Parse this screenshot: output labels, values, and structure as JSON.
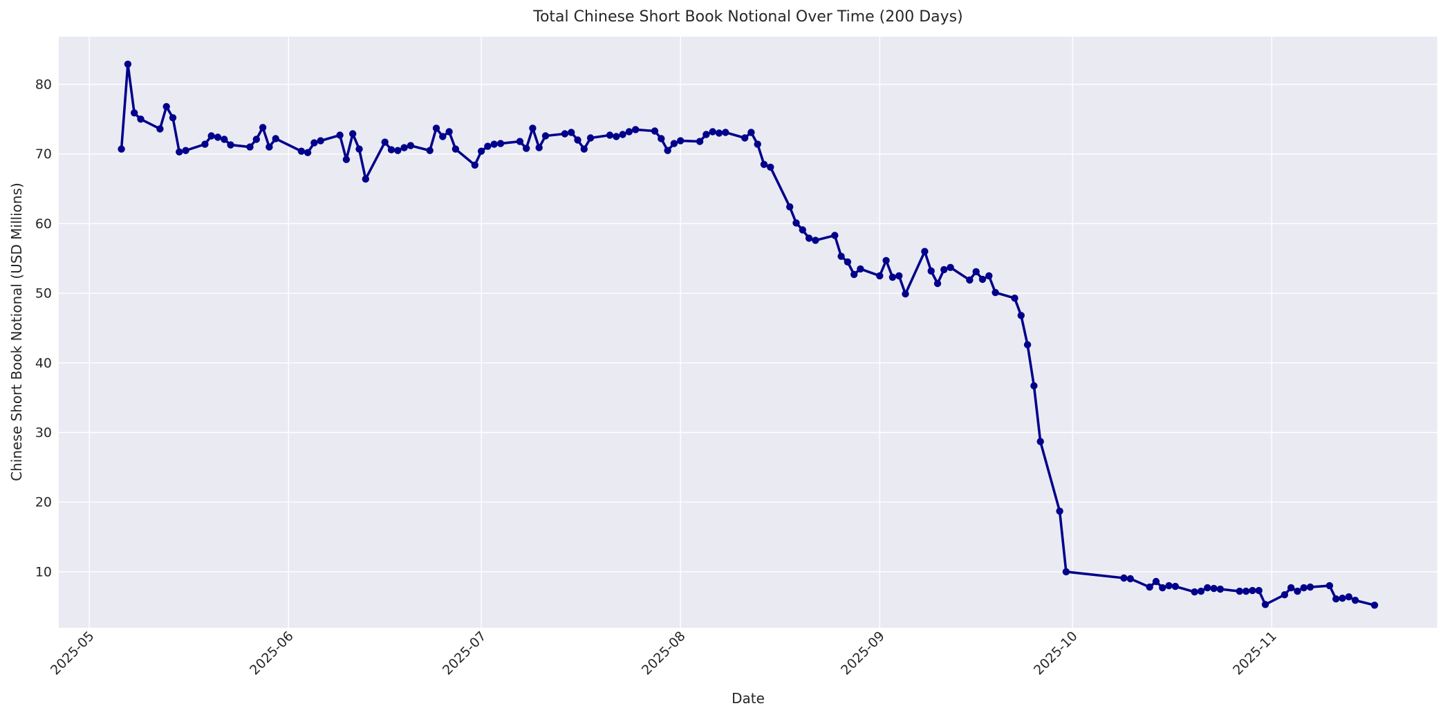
{
  "chart_data": {
    "type": "line",
    "title": "Total Chinese Short Book Notional Over Time (200 Days)",
    "xlabel": "Date",
    "ylabel": "Chinese Short Book Notional (USD Millions)",
    "legend": false,
    "grid": true,
    "marker": "circle",
    "colors": {
      "line": "#00008B",
      "plot_background": "#EAEAF2",
      "figure_background": "#FFFFFF",
      "grid": "#FFFFFF",
      "text": "#262626"
    },
    "x_axis": {
      "reference_date": "2025-05-01",
      "tick_labels": [
        "2025-05",
        "2025-06",
        "2025-07",
        "2025-08",
        "2025-09",
        "2025-10",
        "2025-11"
      ],
      "lim_days": [
        -4.75,
        209.75
      ]
    },
    "y_axis": {
      "ticks": [
        10,
        20,
        30,
        40,
        50,
        60,
        70,
        80
      ],
      "lim": [
        1.95,
        86.85
      ]
    },
    "series": [
      {
        "name": "Total Chinese Short Book Notional",
        "dates": [
          "2025-05-06",
          "2025-05-07",
          "2025-05-08",
          "2025-05-09",
          "2025-05-12",
          "2025-05-13",
          "2025-05-14",
          "2025-05-15",
          "2025-05-16",
          "2025-05-19",
          "2025-05-20",
          "2025-05-21",
          "2025-05-22",
          "2025-05-23",
          "2025-05-26",
          "2025-05-27",
          "2025-05-28",
          "2025-05-29",
          "2025-05-30",
          "2025-06-03",
          "2025-06-04",
          "2025-06-05",
          "2025-06-06",
          "2025-06-09",
          "2025-06-10",
          "2025-06-11",
          "2025-06-12",
          "2025-06-13",
          "2025-06-16",
          "2025-06-17",
          "2025-06-18",
          "2025-06-19",
          "2025-06-20",
          "2025-06-23",
          "2025-06-24",
          "2025-06-25",
          "2025-06-26",
          "2025-06-27",
          "2025-06-30",
          "2025-07-01",
          "2025-07-02",
          "2025-07-03",
          "2025-07-04",
          "2025-07-07",
          "2025-07-08",
          "2025-07-09",
          "2025-07-10",
          "2025-07-11",
          "2025-07-14",
          "2025-07-15",
          "2025-07-16",
          "2025-07-17",
          "2025-07-18",
          "2025-07-21",
          "2025-07-22",
          "2025-07-23",
          "2025-07-24",
          "2025-07-25",
          "2025-07-28",
          "2025-07-29",
          "2025-07-30",
          "2025-07-31",
          "2025-08-01",
          "2025-08-04",
          "2025-08-05",
          "2025-08-06",
          "2025-08-07",
          "2025-08-08",
          "2025-08-11",
          "2025-08-12",
          "2025-08-13",
          "2025-08-14",
          "2025-08-15",
          "2025-08-18",
          "2025-08-19",
          "2025-08-20",
          "2025-08-21",
          "2025-08-22",
          "2025-08-25",
          "2025-08-26",
          "2025-08-27",
          "2025-08-28",
          "2025-08-29",
          "2025-09-01",
          "2025-09-02",
          "2025-09-03",
          "2025-09-04",
          "2025-09-05",
          "2025-09-08",
          "2025-09-09",
          "2025-09-10",
          "2025-09-11",
          "2025-09-12",
          "2025-09-15",
          "2025-09-16",
          "2025-09-17",
          "2025-09-18",
          "2025-09-19",
          "2025-09-22",
          "2025-09-23",
          "2025-09-24",
          "2025-09-25",
          "2025-09-26",
          "2025-09-29",
          "2025-09-30",
          "2025-10-09",
          "2025-10-10",
          "2025-10-13",
          "2025-10-14",
          "2025-10-15",
          "2025-10-16",
          "2025-10-17",
          "2025-10-20",
          "2025-10-21",
          "2025-10-22",
          "2025-10-23",
          "2025-10-24",
          "2025-10-27",
          "2025-10-28",
          "2025-10-29",
          "2025-10-30",
          "2025-10-31",
          "2025-11-03",
          "2025-11-04",
          "2025-11-05",
          "2025-11-06",
          "2025-11-07",
          "2025-11-10",
          "2025-11-11",
          "2025-11-12",
          "2025-11-13",
          "2025-11-14",
          "2025-11-17"
        ],
        "values": [
          70.7,
          82.9,
          75.9,
          75.0,
          73.6,
          76.8,
          75.2,
          70.3,
          70.5,
          71.4,
          72.6,
          72.4,
          72.1,
          71.3,
          71.0,
          72.1,
          73.8,
          71.0,
          72.2,
          70.4,
          70.2,
          71.6,
          71.9,
          72.7,
          69.2,
          72.9,
          70.7,
          66.4,
          71.7,
          70.6,
          70.5,
          70.9,
          71.2,
          70.5,
          73.7,
          72.5,
          73.2,
          70.7,
          68.4,
          70.4,
          71.1,
          71.4,
          71.5,
          71.8,
          70.8,
          73.7,
          70.9,
          72.6,
          72.9,
          73.1,
          72.0,
          70.7,
          72.3,
          72.7,
          72.5,
          72.8,
          73.2,
          73.5,
          73.3,
          72.2,
          70.5,
          71.5,
          71.9,
          71.8,
          72.8,
          73.2,
          73.0,
          73.1,
          72.3,
          73.1,
          71.4,
          68.5,
          68.1,
          62.4,
          60.1,
          59.1,
          57.9,
          57.6,
          58.3,
          55.3,
          54.5,
          52.7,
          53.5,
          52.5,
          54.7,
          52.3,
          52.5,
          49.9,
          56.0,
          53.2,
          51.4,
          53.4,
          53.7,
          51.9,
          53.1,
          52.0,
          52.5,
          50.1,
          49.3,
          46.8,
          42.6,
          36.7,
          28.7,
          18.7,
          10.0,
          9.1,
          9.0,
          7.8,
          8.6,
          7.7,
          8.0,
          7.9,
          7.1,
          7.2,
          7.7,
          7.6,
          7.5,
          7.2,
          7.2,
          7.3,
          7.3,
          5.3,
          6.7,
          7.7,
          7.2,
          7.7,
          7.8,
          8.0,
          6.1,
          6.2,
          6.4,
          5.9,
          5.2
        ]
      }
    ]
  }
}
